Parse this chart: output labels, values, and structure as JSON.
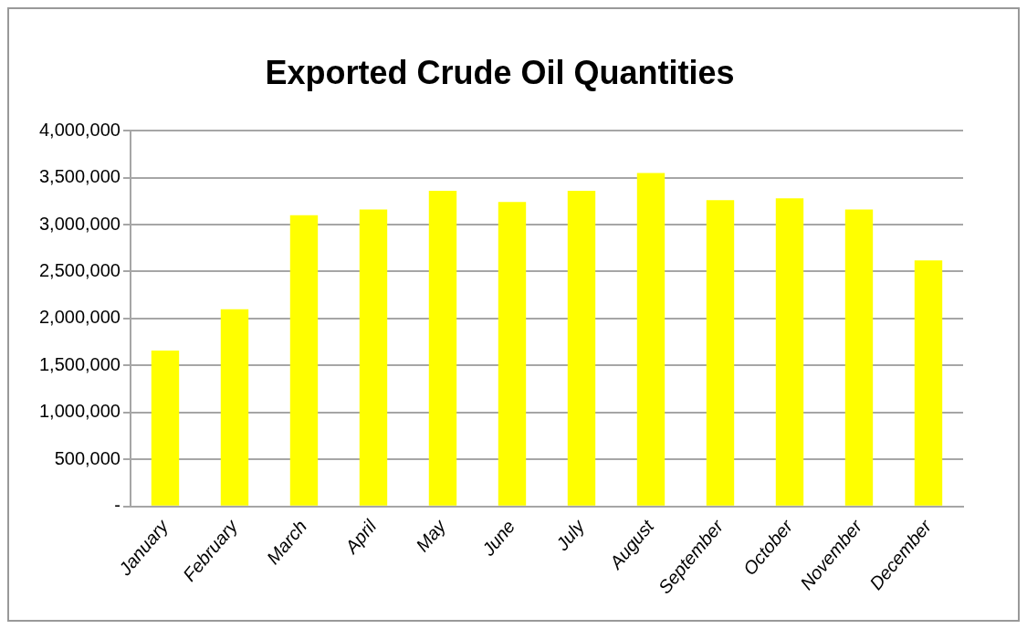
{
  "chart_data": {
    "type": "bar",
    "title": "Exported Crude Oil Quantities",
    "categories": [
      "January",
      "February",
      "March",
      "April",
      "May",
      "June",
      "July",
      "August",
      "September",
      "October",
      "November",
      "December"
    ],
    "values": [
      1660000,
      2100000,
      3100000,
      3160000,
      3360000,
      3240000,
      3360000,
      3550000,
      3260000,
      3280000,
      3160000,
      2620000
    ],
    "color": "#ffff00",
    "ylim": [
      0,
      4000000
    ],
    "yticks": [
      {
        "value": 0,
        "label": "-"
      },
      {
        "value": 500000,
        "label": "500,000"
      },
      {
        "value": 1000000,
        "label": "1,000,000"
      },
      {
        "value": 1500000,
        "label": "1,500,000"
      },
      {
        "value": 2000000,
        "label": "2,000,000"
      },
      {
        "value": 2500000,
        "label": "2,500,000"
      },
      {
        "value": 3000000,
        "label": "3,000,000"
      },
      {
        "value": 3500000,
        "label": "3,500,000"
      },
      {
        "value": 4000000,
        "label": "4,000,000"
      }
    ],
    "grid": "y",
    "legend": false
  }
}
